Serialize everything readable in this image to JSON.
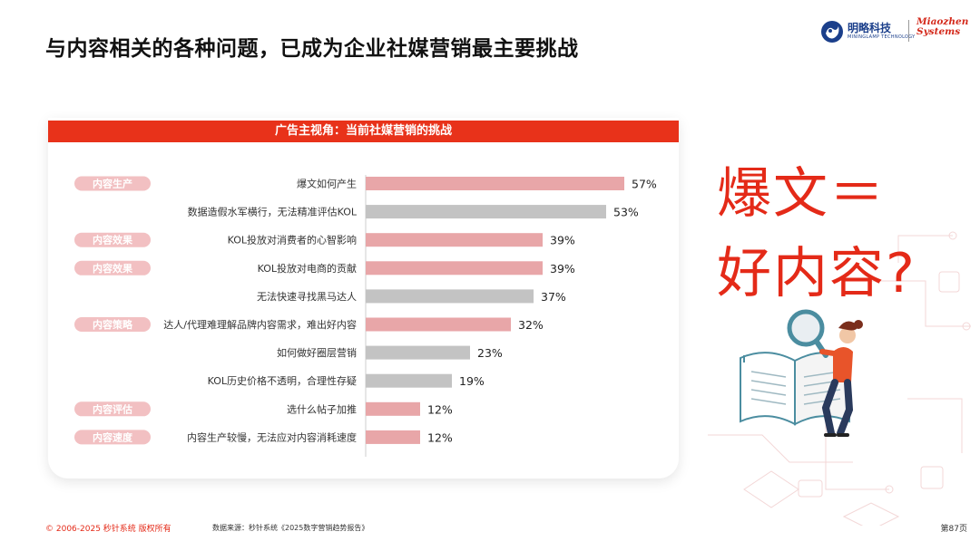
{
  "page": {
    "title": "与内容相关的各种问题，已成为企业社媒营销最主要挑战",
    "big_text_line1": "爆文＝",
    "big_text_line2": "好内容?",
    "footer_copyright": "© 2006-2025 秒针系统 版权所有",
    "footer_source": "数据来源：秒针系统《2025数字营销趋势报告》",
    "page_number": "第87页"
  },
  "logos": {
    "mingluo_cn": "明略科技",
    "mingluo_en": "MININGLAMP TECHNOLOGY",
    "miaozhen_line1": "Miaozhen",
    "miaozhen_line2": "Systems"
  },
  "colors": {
    "accent": "#e8321a",
    "bar_highlight": "#e8a6a8",
    "bar_neutral": "#c3c3c3",
    "tag_bg": "#f2c0c2",
    "tag_text": "#ffffff"
  },
  "chart_data": {
    "type": "bar",
    "orientation": "horizontal",
    "title": "广告主视角：当前社媒营销的挑战",
    "value_suffix": "%",
    "xlim": [
      0,
      100
    ],
    "grid": false,
    "groups": [
      {
        "label": "内容生产",
        "rows": [
          0,
          1
        ]
      },
      {
        "label": "内容效果",
        "rows": [
          2
        ]
      },
      {
        "label": "内容效果",
        "rows": [
          3
        ]
      },
      {
        "label": "内容策略",
        "rows": [
          5
        ]
      },
      {
        "label": "内容评估",
        "rows": [
          8
        ]
      },
      {
        "label": "内容速度",
        "rows": [
          9
        ]
      }
    ],
    "categories": [
      "爆文如何产生",
      "数据造假水军横行，无法精准评估KOL",
      "KOL投放对消费者的心智影响",
      "KOL投放对电商的贡献",
      "无法快速寻找黑马达人",
      "达人/代理难理解品牌内容需求，难出好内容",
      "如何做好圈层营销",
      "KOL历史价格不透明，合理性存疑",
      "选什么帖子加推",
      "内容生产较慢，无法应对内容消耗速度"
    ],
    "values": [
      57,
      53,
      39,
      39,
      37,
      32,
      23,
      19,
      12,
      12
    ],
    "highlighted": [
      true,
      false,
      true,
      true,
      false,
      true,
      false,
      false,
      true,
      true
    ]
  }
}
